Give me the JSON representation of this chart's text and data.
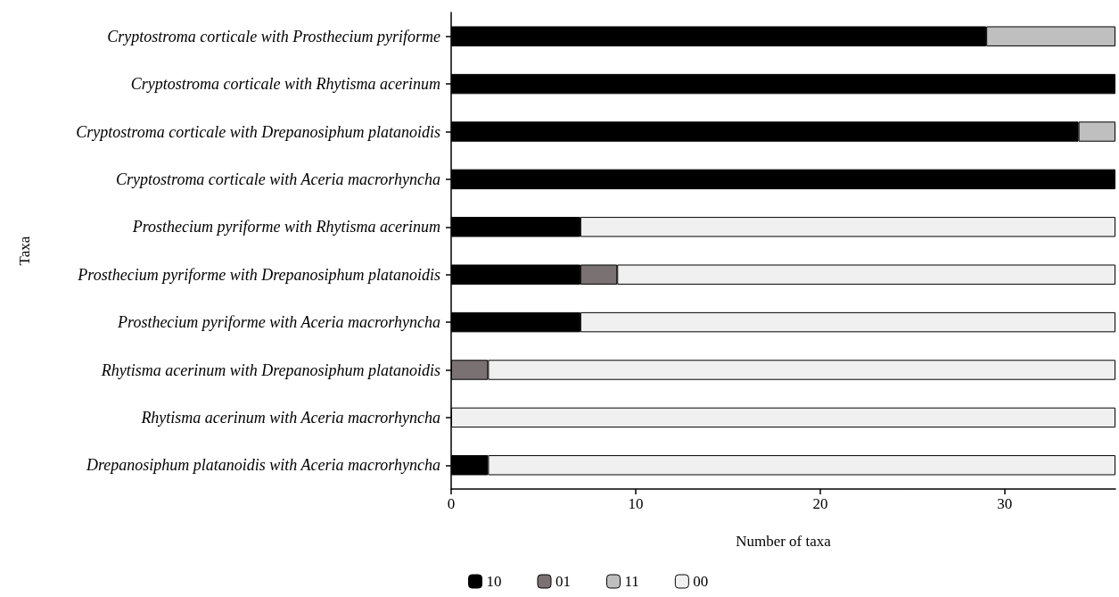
{
  "chart_data": {
    "type": "bar",
    "orientation": "horizontal",
    "stacked": true,
    "xlabel": "Number of taxa",
    "ylabel": "Taxa",
    "categories": [
      "Cryptostroma corticale with Prosthecium pyriforme",
      "Cryptostroma corticale with Rhytisma acerinum",
      "Cryptostroma corticale with Drepanosiphum platanoidis",
      "Cryptostroma corticale with Aceria macrorhyncha",
      "Prosthecium pyriforme with Rhytisma acerinum",
      "Prosthecium pyriforme with Drepanosiphum platanoidis",
      "Prosthecium pyriforme with Aceria macrorhyncha",
      "Rhytisma acerinum with Drepanosiphum platanoidis",
      "Rhytisma acerinum with Aceria macrorhyncha",
      "Drepanosiphum platanoidis with Aceria macrorhyncha"
    ],
    "series": [
      {
        "name": "10",
        "color": "#000000",
        "values": [
          29,
          36,
          34,
          36,
          7,
          7,
          7,
          0,
          0,
          2
        ]
      },
      {
        "name": "01",
        "color": "#7a7173",
        "values": [
          0,
          0,
          0,
          0,
          0,
          2,
          0,
          2,
          0,
          0
        ]
      },
      {
        "name": "11",
        "color": "#bfbfbf",
        "values": [
          7,
          0,
          2,
          0,
          0,
          0,
          0,
          0,
          0,
          0
        ]
      },
      {
        "name": "00",
        "color": "#f0f0f0",
        "values": [
          0,
          0,
          0,
          0,
          29,
          27,
          29,
          34,
          36,
          34
        ]
      }
    ],
    "xlim": [
      0,
      36
    ],
    "xticks": [
      0,
      10,
      20,
      30
    ],
    "grid": false,
    "legend": "bottom"
  }
}
